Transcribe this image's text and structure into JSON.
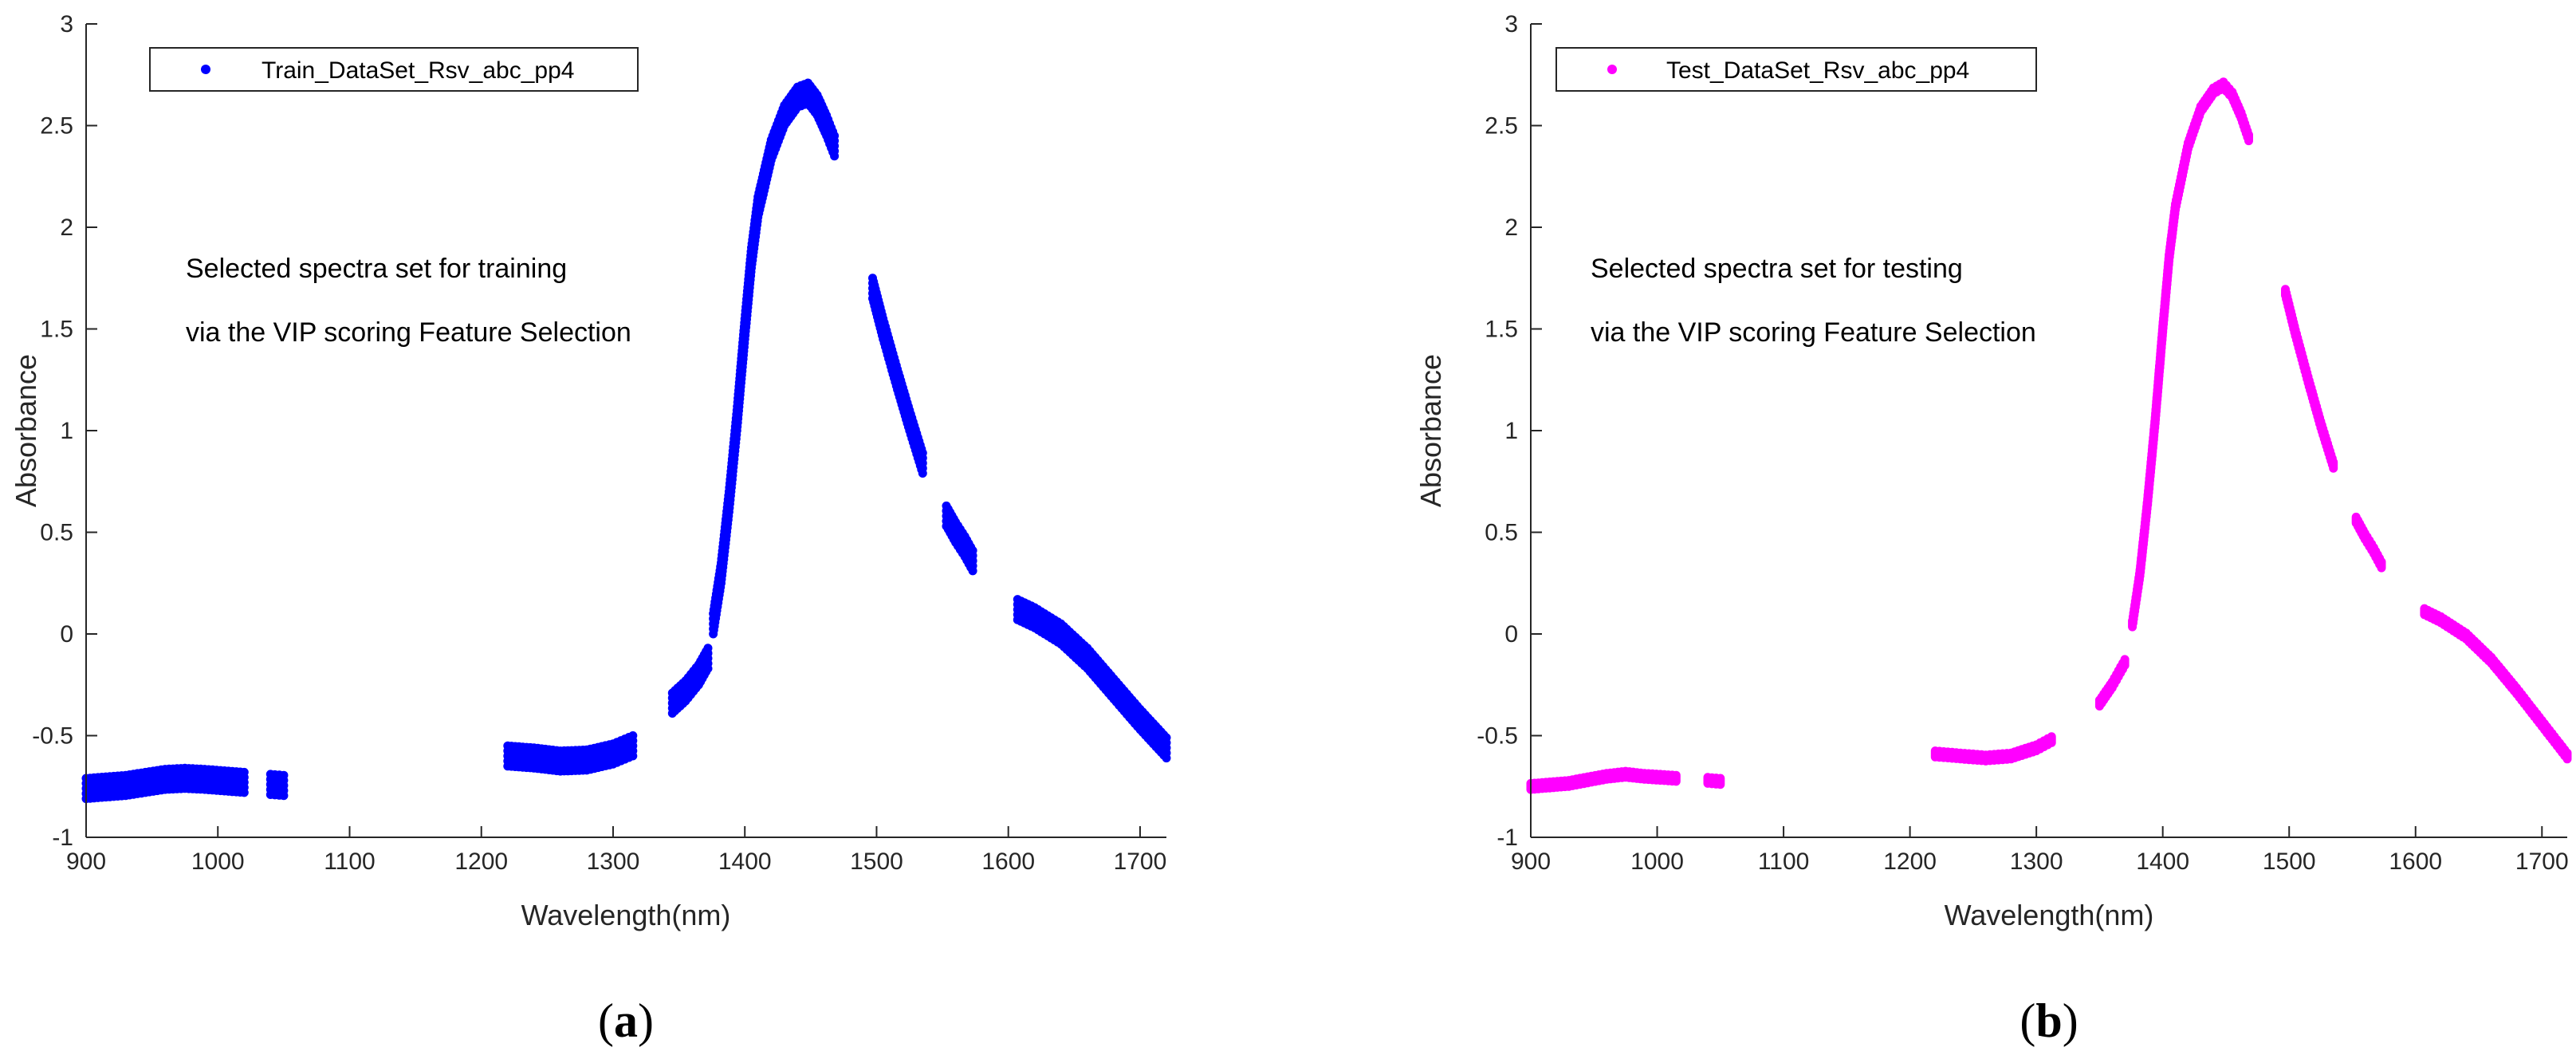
{
  "chart_data": [
    {
      "type": "scatter",
      "panel_label": "(a)",
      "panel_letter": "a",
      "xlabel": "Wavelength(nm)",
      "ylabel": "Absorbance",
      "xlim": [
        900,
        1720
      ],
      "ylim": [
        -1,
        3
      ],
      "xticks": [
        900,
        1000,
        1100,
        1200,
        1300,
        1400,
        1500,
        1600,
        1700
      ],
      "yticks": [
        -1,
        -0.5,
        0,
        0.5,
        1,
        1.5,
        2,
        2.5,
        3
      ],
      "ytick_labels": [
        "-1",
        "-0.5",
        "0",
        "0.5",
        "1",
        "1.5",
        "2",
        "2.5",
        "3"
      ],
      "legend": "Train_DataSet_Rsv_abc_pp4",
      "legend_position": "top-left",
      "color": "#0000ff",
      "band_spread": 0.05,
      "annotation": [
        "Selected spectra set for training",
        "via the VIP scoring Feature Selection"
      ],
      "series": [
        {
          "name": "Train_DataSet_Rsv_abc_pp4",
          "x": [
            900,
            930,
            960,
            975,
            990,
            1020
          ],
          "y": [
            -0.76,
            -0.745,
            -0.715,
            -0.71,
            -0.715,
            -0.73
          ]
        },
        {
          "name": "Train_DataSet_Rsv_abc_pp4",
          "x": [
            1040,
            1050
          ],
          "y": [
            -0.74,
            -0.745
          ]
        },
        {
          "name": "Train_DataSet_Rsv_abc_pp4",
          "x": [
            1220,
            1240,
            1260,
            1280,
            1300,
            1315
          ],
          "y": [
            -0.6,
            -0.61,
            -0.625,
            -0.62,
            -0.59,
            -0.55
          ]
        },
        {
          "name": "Train_DataSet_Rsv_abc_pp4",
          "x": [
            1345,
            1355,
            1365,
            1372
          ],
          "y": [
            -0.34,
            -0.28,
            -0.2,
            -0.12
          ]
        },
        {
          "name": "Train_DataSet_Rsv_abc_pp4",
          "x": [
            1376,
            1382,
            1388,
            1394,
            1400,
            1405,
            1410,
            1420,
            1430,
            1440,
            1448,
            1455,
            1462,
            1468
          ],
          "y": [
            0.05,
            0.3,
            0.65,
            1.05,
            1.5,
            1.85,
            2.1,
            2.38,
            2.55,
            2.64,
            2.66,
            2.6,
            2.5,
            2.4
          ]
        },
        {
          "name": "Train_DataSet_Rsv_abc_pp4",
          "x": [
            1497,
            1505,
            1515,
            1525,
            1535
          ],
          "y": [
            1.7,
            1.5,
            1.27,
            1.05,
            0.84
          ]
        },
        {
          "name": "Train_DataSet_Rsv_abc_pp4",
          "x": [
            1553,
            1560,
            1567,
            1573
          ],
          "y": [
            0.58,
            0.5,
            0.43,
            0.36
          ]
        },
        {
          "name": "Train_DataSet_Rsv_abc_pp4",
          "x": [
            1607,
            1620,
            1640,
            1660,
            1680,
            1700,
            1720
          ],
          "y": [
            0.12,
            0.08,
            0.0,
            -0.12,
            -0.27,
            -0.42,
            -0.56
          ]
        }
      ]
    },
    {
      "type": "scatter",
      "panel_label": "(b)",
      "panel_letter": "b",
      "xlabel": "Wavelength(nm)",
      "ylabel": "Absorbance",
      "xlim": [
        900,
        1720
      ],
      "ylim": [
        -1,
        3
      ],
      "xticks": [
        900,
        1000,
        1100,
        1200,
        1300,
        1400,
        1500,
        1600,
        1700
      ],
      "yticks": [
        -1,
        -0.5,
        0,
        0.5,
        1,
        1.5,
        2,
        2.5,
        3
      ],
      "ytick_labels": [
        "-1",
        "-0.5",
        "0",
        "0.5",
        "1",
        "1.5",
        "2",
        "2.5",
        "3"
      ],
      "legend": "Test_DataSet_Rsv_abc_pp4",
      "legend_position": "top-left",
      "color": "#ff00ff",
      "band_spread": 0.015,
      "annotation": [
        "Selected spectra set for testing",
        "via the VIP scoring Feature Selection"
      ],
      "series": [
        {
          "name": "Test_DataSet_Rsv_abc_pp4",
          "x": [
            900,
            930,
            960,
            975,
            990,
            1015
          ],
          "y": [
            -0.75,
            -0.735,
            -0.7,
            -0.69,
            -0.7,
            -0.71
          ]
        },
        {
          "name": "Test_DataSet_Rsv_abc_pp4",
          "x": [
            1040,
            1050
          ],
          "y": [
            -0.72,
            -0.725
          ]
        },
        {
          "name": "Test_DataSet_Rsv_abc_pp4",
          "x": [
            1220,
            1240,
            1260,
            1280,
            1300,
            1312
          ],
          "y": [
            -0.59,
            -0.6,
            -0.61,
            -0.6,
            -0.56,
            -0.52
          ]
        },
        {
          "name": "Test_DataSet_Rsv_abc_pp4",
          "x": [
            1350,
            1360,
            1370
          ],
          "y": [
            -0.34,
            -0.25,
            -0.14
          ]
        },
        {
          "name": "Test_DataSet_Rsv_abc_pp4",
          "x": [
            1376,
            1382,
            1388,
            1394,
            1400,
            1405,
            1410,
            1420,
            1430,
            1440,
            1448,
            1455,
            1462,
            1468
          ],
          "y": [
            0.05,
            0.3,
            0.65,
            1.05,
            1.5,
            1.85,
            2.1,
            2.4,
            2.58,
            2.67,
            2.7,
            2.65,
            2.55,
            2.44
          ]
        },
        {
          "name": "Test_DataSet_Rsv_abc_pp4",
          "x": [
            1497,
            1505,
            1515,
            1525,
            1535
          ],
          "y": [
            1.68,
            1.48,
            1.25,
            1.03,
            0.83
          ]
        },
        {
          "name": "Test_DataSet_Rsv_abc_pp4",
          "x": [
            1553,
            1560,
            1567,
            1573
          ],
          "y": [
            0.56,
            0.48,
            0.41,
            0.34
          ]
        },
        {
          "name": "Test_DataSet_Rsv_abc_pp4",
          "x": [
            1607,
            1620,
            1640,
            1660,
            1680,
            1700,
            1720
          ],
          "y": [
            0.11,
            0.07,
            -0.01,
            -0.13,
            -0.28,
            -0.44,
            -0.6
          ]
        }
      ]
    }
  ]
}
